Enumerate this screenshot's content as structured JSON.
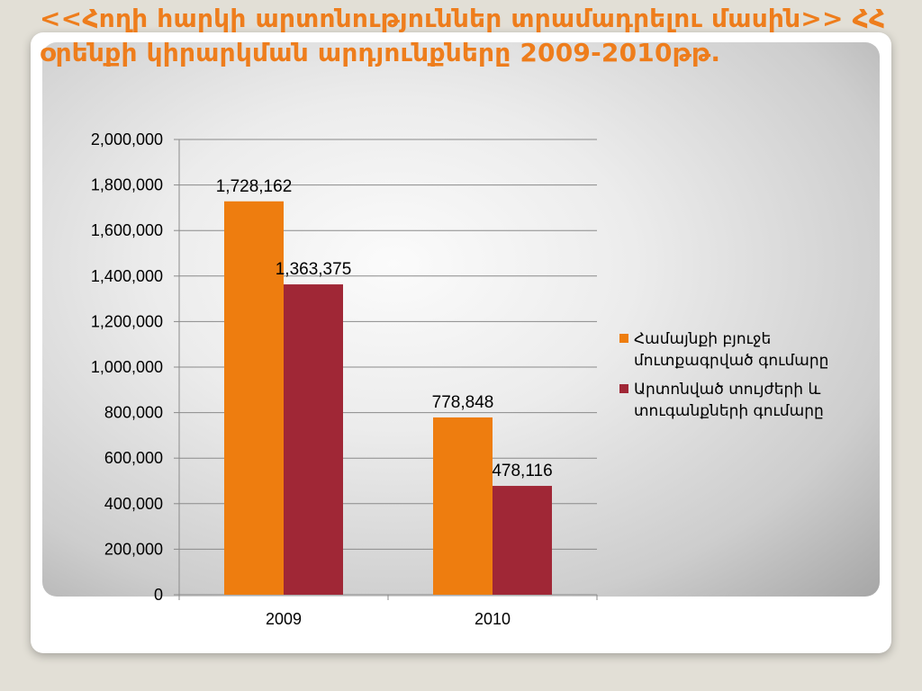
{
  "slide": {
    "title": "<<Հողի հարկի արտոնություններ տրամադրելու մասին>> ՀՀ օրենքի կիրարկման արդյունքները 2009-2010թթ."
  },
  "chart_data": {
    "type": "bar",
    "categories": [
      "2009",
      "2010"
    ],
    "series": [
      {
        "name": "Համայնքի բյուջե մուտքագրված գումարը",
        "values": [
          1728162,
          778848
        ],
        "color": "#ee7d0f"
      },
      {
        "name": "Արտոնված տույժերի  և տուգանքների գումարը",
        "values": [
          1363375,
          478116
        ],
        "color": "#a02736"
      }
    ],
    "data_labels": [
      [
        "1,728,162",
        "778,848"
      ],
      [
        "1,363,375",
        "478,116"
      ]
    ],
    "y_ticks": [
      "0",
      "200,000",
      "400,000",
      "600,000",
      "800,000",
      "1,000,000",
      "1,200,000",
      "1,400,000",
      "1,600,000",
      "1,800,000",
      "2,000,000"
    ],
    "ylim": [
      0,
      2000000
    ],
    "grid": true,
    "legend_position": "right",
    "title": "",
    "xlabel": "",
    "ylabel": ""
  }
}
